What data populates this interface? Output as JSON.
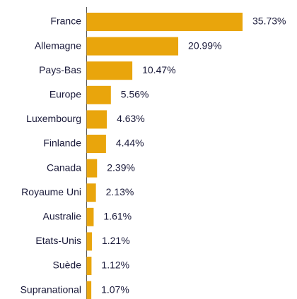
{
  "chart_data": {
    "type": "bar",
    "orientation": "horizontal",
    "categories": [
      "France",
      "Allemagne",
      "Pays-Bas",
      "Europe",
      "Luxembourg",
      "Finlande",
      "Canada",
      "Royaume Uni",
      "Australie",
      "Etats-Unis",
      "Suède",
      "Supranational"
    ],
    "values": [
      35.73,
      20.99,
      10.47,
      5.56,
      4.63,
      4.44,
      2.39,
      2.13,
      1.61,
      1.21,
      1.12,
      1.07
    ],
    "value_labels": [
      "35.73%",
      "20.99%",
      "10.47%",
      "5.56%",
      "4.63%",
      "4.44%",
      "2.39%",
      "2.13%",
      "1.61%",
      "1.21%",
      "1.12%",
      "1.07%"
    ],
    "color": "#e9a50c"
  }
}
